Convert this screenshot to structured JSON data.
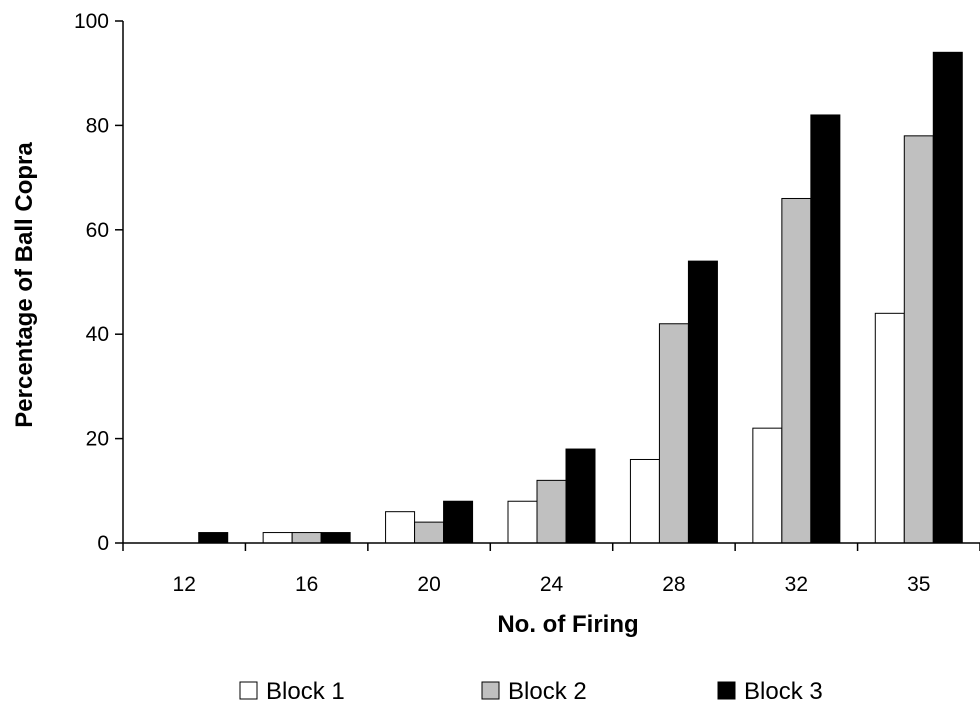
{
  "chart_data": {
    "type": "bar",
    "title": "",
    "xlabel": "No. of Firing",
    "ylabel": "Percentage of Ball Copra",
    "categories": [
      "12",
      "16",
      "20",
      "24",
      "28",
      "32",
      "35"
    ],
    "series": [
      {
        "name": "Block 1",
        "color": "#ffffff",
        "values": [
          0,
          2,
          6,
          8,
          16,
          22,
          44
        ]
      },
      {
        "name": "Block 2",
        "color": "#c0c0c0",
        "values": [
          0,
          2,
          4,
          12,
          42,
          66,
          78
        ]
      },
      {
        "name": "Block 3",
        "color": "#000000",
        "values": [
          2,
          2,
          8,
          18,
          54,
          82,
          94
        ]
      }
    ],
    "ylim": [
      0,
      100
    ],
    "yticks": [
      "0",
      "20",
      "40",
      "60",
      "80",
      "100"
    ],
    "grid": false,
    "legend_position": "bottom"
  }
}
